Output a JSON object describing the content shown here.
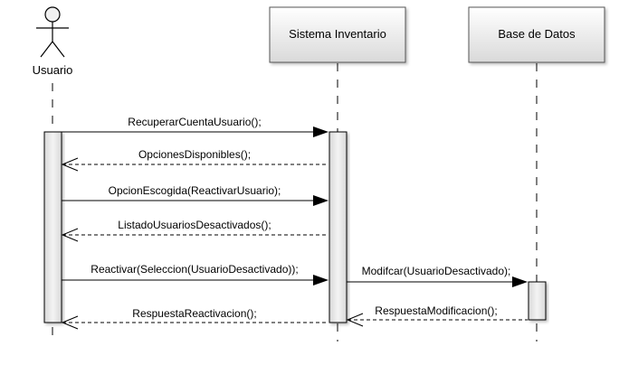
{
  "participants": {
    "actor": {
      "label": "Usuario",
      "icon": "stick-figure-actor"
    },
    "system": {
      "label": "Sistema Inventario"
    },
    "database": {
      "label": "Base de Datos"
    }
  },
  "messages": [
    {
      "from": "actor",
      "to": "system",
      "label": "RecuperarCuentaUsuario();",
      "kind": "call"
    },
    {
      "from": "system",
      "to": "actor",
      "label": "OpcionesDisponibles();",
      "kind": "return"
    },
    {
      "from": "actor",
      "to": "system",
      "label": "OpcionEscogida(ReactivarUsuario);",
      "kind": "call"
    },
    {
      "from": "system",
      "to": "actor",
      "label": "ListadoUsuariosDesactivados();",
      "kind": "return"
    },
    {
      "from": "actor",
      "to": "system",
      "label": "Reactivar(Seleccion(UsuarioDesactivado));",
      "kind": "call"
    },
    {
      "from": "system",
      "to": "database",
      "label": "Modifcar(UsuarioDesactivado);",
      "kind": "call"
    },
    {
      "from": "database",
      "to": "system",
      "label": "RespuestaModificacion();",
      "kind": "return"
    },
    {
      "from": "system",
      "to": "actor",
      "label": "RespuestaReactivacion();",
      "kind": "return"
    }
  ],
  "colors": {
    "line": "#000000",
    "box_top": "#ffffff",
    "box_bottom": "#dcdcdc",
    "activation": "#e8e8e8",
    "text": "#000000"
  }
}
